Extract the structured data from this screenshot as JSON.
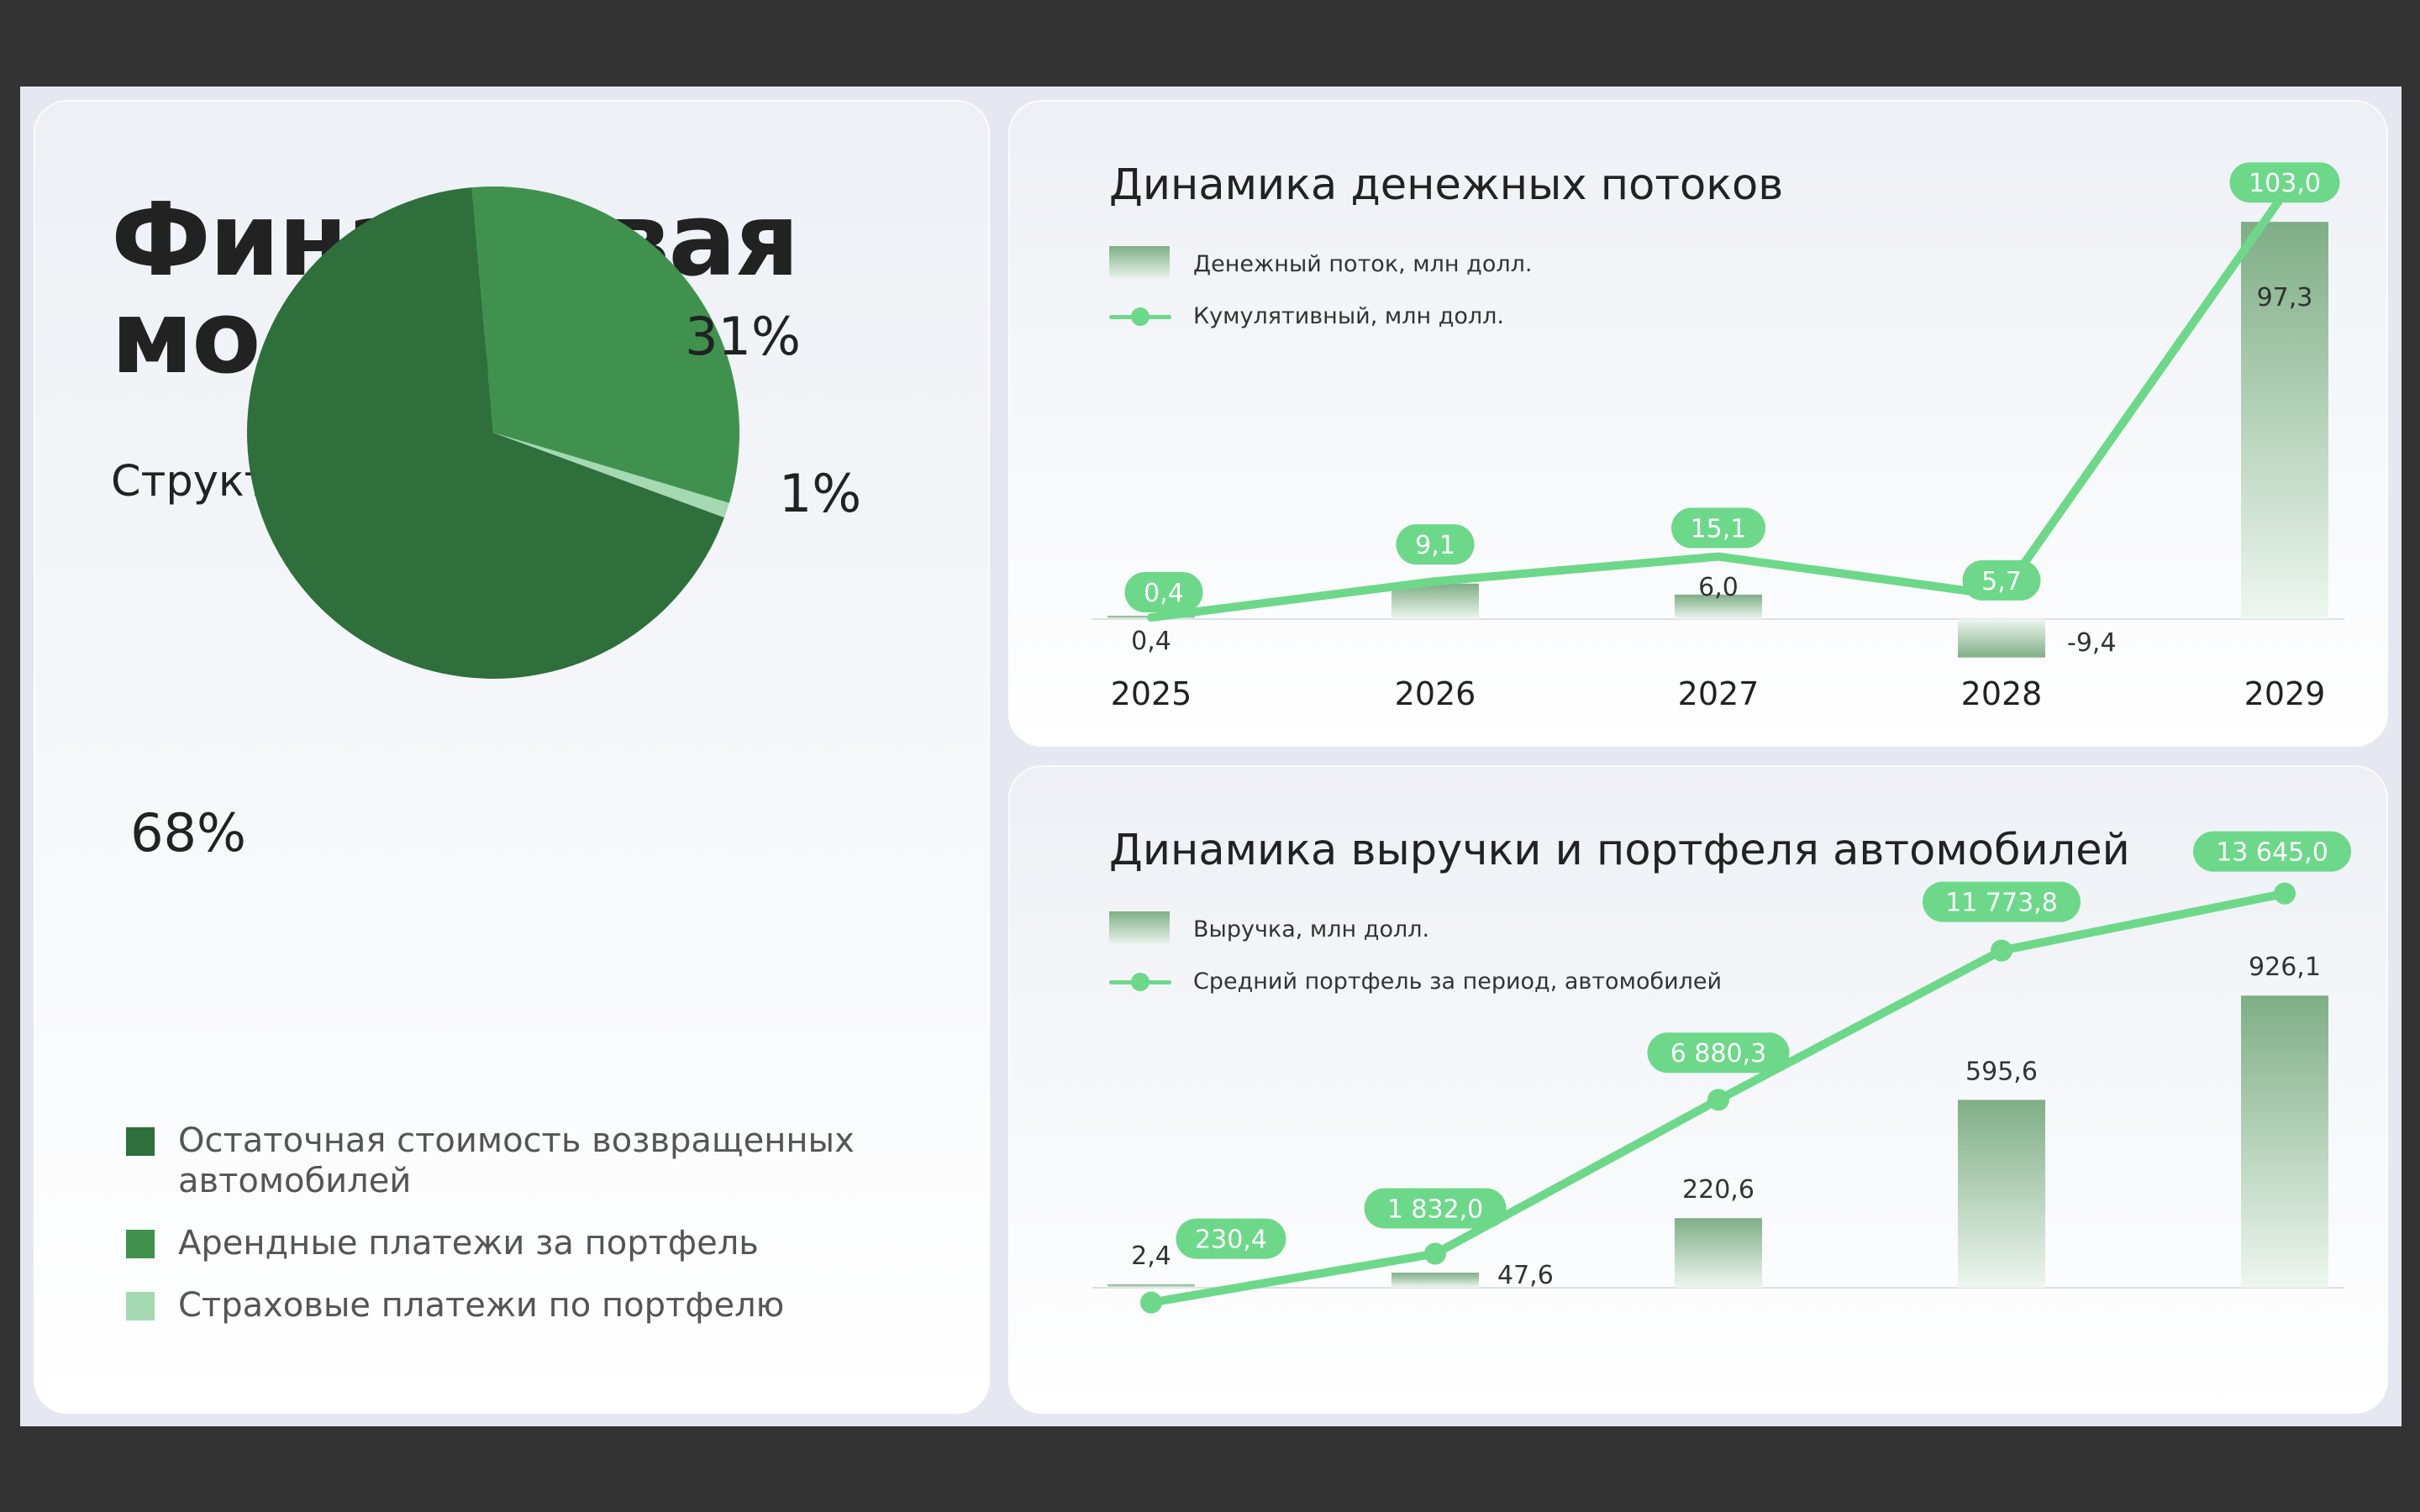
{
  "title_line1": "Финансовая",
  "title_line2": "модель",
  "revenue_structure": {
    "subtitle": "Структура выручки",
    "slice_labels": [
      "68%",
      "31%",
      "1%"
    ],
    "colors": [
      "#2e6f3c",
      "#40914e",
      "#a5d9b2"
    ],
    "legend": [
      "Остаточная стоимость возвращенных автомобилей",
      "Арендные платежи за портфель",
      "Страховые платежи по портфелю"
    ]
  },
  "cashflow_chart": {
    "title": "Динамика денежных потоков",
    "legend_bar": "Денежный поток, млн долл.",
    "legend_line": "Кумулятивный, млн долл."
  },
  "revenue_chart": {
    "title": "Динамика выручки и портфеля автомобилей",
    "legend_bar": "Выручка, млн долл.",
    "legend_line": "Средний портфель за период, автомобилей"
  },
  "chart_data": [
    {
      "type": "pie",
      "title": "Структура выручки",
      "categories": [
        "Остаточная стоимость возвращенных автомобилей",
        "Арендные платежи за портфель",
        "Страховые платежи по портфелю"
      ],
      "values": [
        68,
        31,
        1
      ],
      "unit": "%"
    },
    {
      "type": "bar",
      "title": "Динамика денежных потоков",
      "categories": [
        "2025",
        "2026",
        "2027",
        "2028",
        "2029"
      ],
      "series": [
        {
          "name": "Денежный поток, млн долл.",
          "type": "bar",
          "values": [
            0.4,
            8.7,
            6.0,
            -9.4,
            97.3
          ],
          "labels": [
            "0,4",
            "",
            "6,0",
            "-9,4",
            "97,3"
          ]
        },
        {
          "name": "Кумулятивный, млн долл.",
          "type": "line",
          "values": [
            0.4,
            9.1,
            15.1,
            5.7,
            103.0
          ],
          "labels": [
            "0,4",
            "9,1",
            "15,1",
            "5,7",
            "103,0"
          ]
        }
      ],
      "legend": "top-left"
    },
    {
      "type": "bar",
      "title": "Динамика выручки и портфеля автомобилей",
      "categories": [
        "2025",
        "2026",
        "2027",
        "2028",
        "2029"
      ],
      "series": [
        {
          "name": "Выручка, млн долл.",
          "type": "bar",
          "values": [
            2.4,
            47.6,
            220.6,
            595.6,
            926.1
          ],
          "labels": [
            "2,4",
            "47,6",
            "220,6",
            "595,6",
            "926,1"
          ]
        },
        {
          "name": "Средний портфель за период, автомобилей",
          "type": "line",
          "values": [
            230.4,
            1832.0,
            6880.3,
            11773.8,
            13645.0
          ],
          "labels": [
            "230,4",
            "1 832,0",
            "6 880,3",
            "11 773,8",
            "13 645,0"
          ]
        }
      ],
      "legend": "top-left"
    }
  ]
}
